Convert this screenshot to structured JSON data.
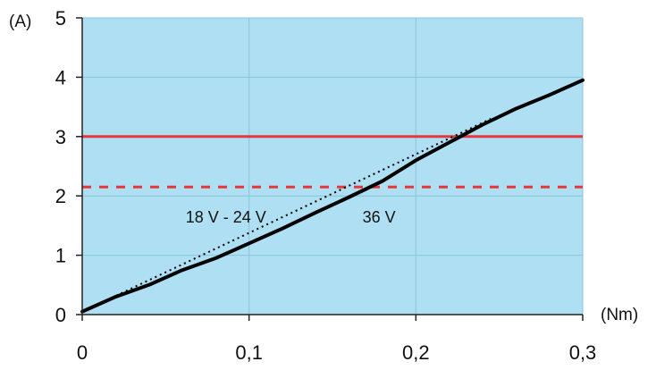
{
  "chart_data": {
    "type": "line",
    "xlabel": "(Nm)",
    "ylabel": "(A)",
    "xlim": [
      0,
      0.3
    ],
    "ylim": [
      0,
      5
    ],
    "x_ticks": [
      0,
      0.1,
      0.2,
      0.3
    ],
    "x_tick_labels": [
      "0",
      "0,1",
      "0,2",
      "0,3"
    ],
    "y_ticks": [
      0,
      1,
      2,
      3,
      4,
      5
    ],
    "y_tick_labels": [
      "0",
      "1",
      "2",
      "3",
      "4",
      "5"
    ],
    "grid": true,
    "colors": {
      "plot_background": "#aedff2",
      "gridline": "#8cc4da",
      "limit_line": "#e8373a",
      "curve": "#000000"
    },
    "series": [
      {
        "style": "solid-thick",
        "color": "#000000",
        "x": [
          0,
          0.02,
          0.04,
          0.06,
          0.08,
          0.1,
          0.12,
          0.14,
          0.16,
          0.18,
          0.2,
          0.22,
          0.24,
          0.26,
          0.28,
          0.3
        ],
        "y": [
          0.05,
          0.3,
          0.5,
          0.75,
          0.95,
          1.2,
          1.45,
          1.72,
          1.98,
          2.25,
          2.6,
          2.9,
          3.2,
          3.47,
          3.7,
          3.95
        ]
      },
      {
        "style": "dotted",
        "color": "#000000",
        "x": [
          0,
          0.245
        ],
        "y": [
          0.05,
          3.3
        ]
      }
    ],
    "horizontal_lines": [
      {
        "y": 3.0,
        "style": "solid",
        "color": "#e8373a"
      },
      {
        "y": 2.15,
        "style": "dashed",
        "color": "#e8373a"
      }
    ],
    "annotations": [
      {
        "text": "18 V - 24 V",
        "x": 0.062,
        "y": 1.55
      },
      {
        "text": "36 V",
        "x": 0.168,
        "y": 1.55
      }
    ]
  }
}
